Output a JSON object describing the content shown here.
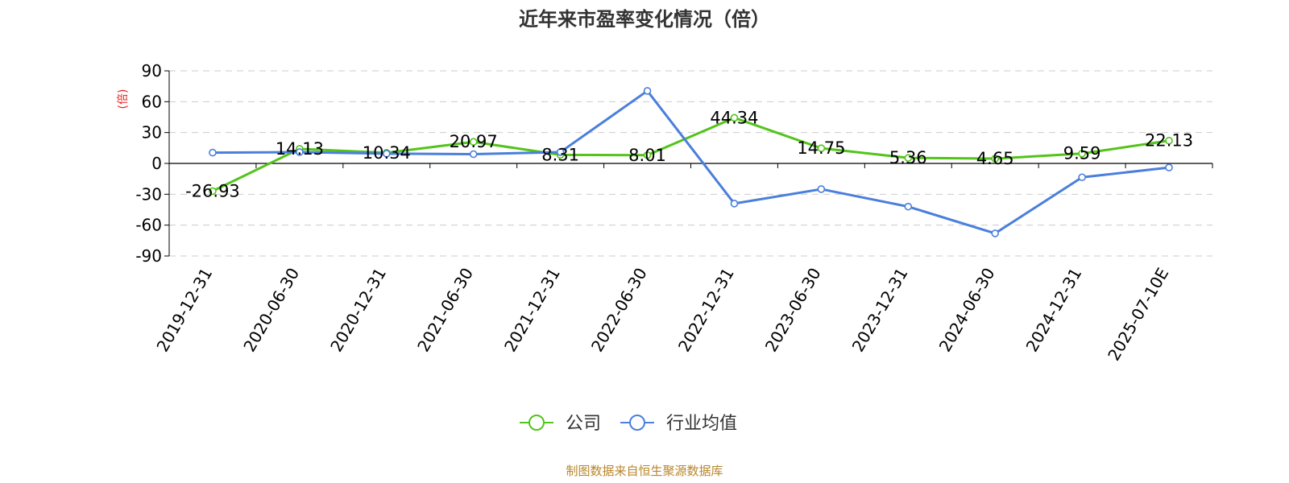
{
  "colors": {
    "company": "#52c41a",
    "industry": "#4a7fdb",
    "ylabel": "#e8201f",
    "source": "#b8862b",
    "grid": "#cccccc",
    "axis": "#000000"
  },
  "source_text": "制图数据来自恒生聚源数据库",
  "chart_data": {
    "type": "line",
    "title": "近年来市盈率变化情况（倍）",
    "xlabel": "",
    "ylabel": "(倍)",
    "ylim": [
      -90,
      90
    ],
    "yticks": [
      90,
      60,
      30,
      0,
      -30,
      -60,
      -90
    ],
    "grid": true,
    "legend_position": "bottom-center",
    "categories": [
      "2019-12-31",
      "2020-06-30",
      "2020-12-31",
      "2021-06-30",
      "2021-12-31",
      "2022-06-30",
      "2022-12-31",
      "2023-06-30",
      "2023-12-31",
      "2024-06-30",
      "2024-12-31",
      "2025-07-10E"
    ],
    "series": [
      {
        "name": "公司",
        "color": "#52c41a",
        "values": [
          -26.93,
          14.13,
          10.34,
          20.97,
          8.31,
          8.01,
          44.34,
          14.75,
          5.36,
          4.65,
          9.59,
          22.13
        ],
        "labels": [
          "-26.93",
          "14.13",
          "10.34",
          "20.97",
          "8.31",
          "8.01",
          "44.34",
          "14.75",
          "5.36",
          "4.65",
          "9.59",
          "22.13"
        ]
      },
      {
        "name": "行业均值",
        "color": "#4a7fdb",
        "values": [
          10.5,
          11,
          9.5,
          9,
          11,
          70.5,
          -39,
          -25,
          -42,
          -68,
          -13.5,
          -4
        ]
      }
    ]
  }
}
